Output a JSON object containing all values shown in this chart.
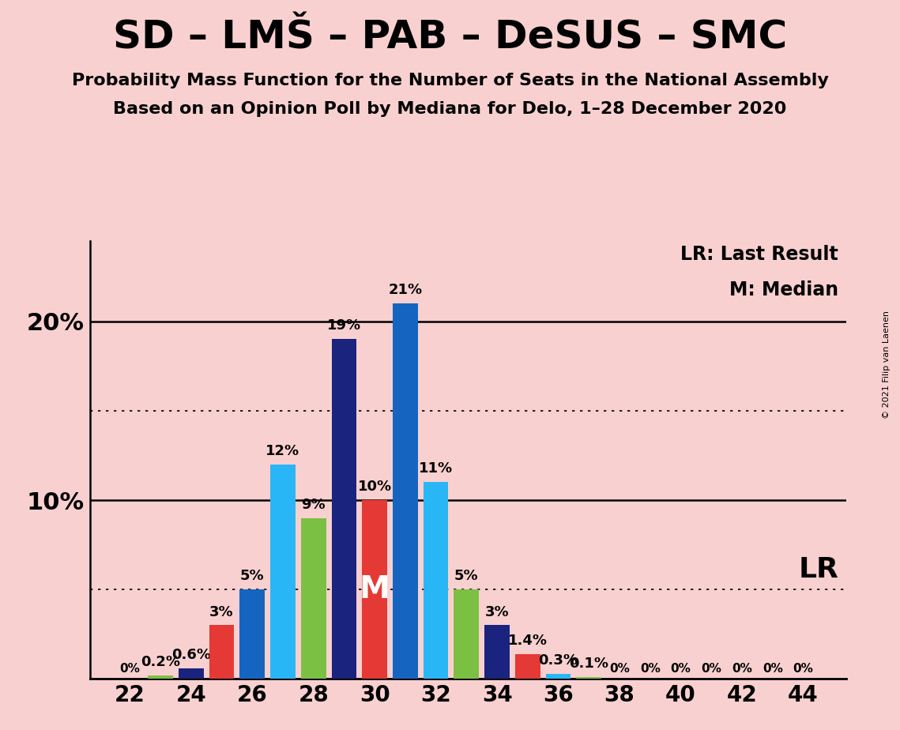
{
  "title": "SD – LMŠ – PAB – DeSUS – SMC",
  "subtitle1": "Probability Mass Function for the Number of Seats in the National Assembly",
  "subtitle2": "Based on an Opinion Poll by Mediana for Delo, 1–28 December 2020",
  "legend_lr": "LR: Last Result",
  "legend_m": "M: Median",
  "lr_label": "LR",
  "copyright": "© 2021 Filip van Laenen",
  "background_color": "#f9d0d0",
  "bars": [
    {
      "x": 22,
      "pct": 0.0,
      "color": "#7bc043",
      "label": "0%"
    },
    {
      "x": 23,
      "pct": 0.2,
      "color": "#7bc043",
      "label": "0.2%"
    },
    {
      "x": 24,
      "pct": 0.6,
      "color": "#1a237e",
      "label": "0.6%"
    },
    {
      "x": 25,
      "pct": 3.0,
      "color": "#e53935",
      "label": "3%"
    },
    {
      "x": 26,
      "pct": 5.0,
      "color": "#1565c0",
      "label": "5%"
    },
    {
      "x": 27,
      "pct": 12.0,
      "color": "#29b6f6",
      "label": "12%"
    },
    {
      "x": 28,
      "pct": 9.0,
      "color": "#7bc043",
      "label": "9%"
    },
    {
      "x": 29,
      "pct": 19.0,
      "color": "#1a237e",
      "label": "19%"
    },
    {
      "x": 30,
      "pct": 10.0,
      "color": "#e53935",
      "label": "10%",
      "median": true
    },
    {
      "x": 31,
      "pct": 21.0,
      "color": "#1565c0",
      "label": "21%"
    },
    {
      "x": 32,
      "pct": 11.0,
      "color": "#29b6f6",
      "label": "11%"
    },
    {
      "x": 33,
      "pct": 5.0,
      "color": "#7bc043",
      "label": "5%"
    },
    {
      "x": 34,
      "pct": 3.0,
      "color": "#1a237e",
      "label": "3%"
    },
    {
      "x": 35,
      "pct": 1.4,
      "color": "#e53935",
      "label": "1.4%"
    },
    {
      "x": 36,
      "pct": 0.3,
      "color": "#29b6f6",
      "label": "0.3%"
    },
    {
      "x": 37,
      "pct": 0.1,
      "color": "#7bc043",
      "label": "0.1%"
    },
    {
      "x": 38,
      "pct": 0.0,
      "color": "#1a237e",
      "label": "0%"
    },
    {
      "x": 39,
      "pct": 0.0,
      "color": "#e53935",
      "label": "0%"
    },
    {
      "x": 40,
      "pct": 0.0,
      "color": "#29b6f6",
      "label": "0%"
    },
    {
      "x": 41,
      "pct": 0.0,
      "color": "#7bc043",
      "label": "0%"
    },
    {
      "x": 42,
      "pct": 0.0,
      "color": "#1a237e",
      "label": "0%"
    },
    {
      "x": 43,
      "pct": 0.0,
      "color": "#e53935",
      "label": "0%"
    },
    {
      "x": 44,
      "pct": 0.0,
      "color": "#29b6f6",
      "label": "0%"
    }
  ],
  "xlim": [
    20.7,
    45.4
  ],
  "ylim": [
    0,
    24.5
  ],
  "xticks": [
    22,
    24,
    26,
    28,
    30,
    32,
    34,
    36,
    38,
    40,
    42,
    44
  ],
  "solid_hlines": [
    10,
    20
  ],
  "dotted_hlines": [
    5,
    15
  ],
  "bar_width": 0.82,
  "title_fontsize": 36,
  "subtitle_fontsize": 16,
  "ytick_fontsize": 22,
  "xtick_fontsize": 20,
  "label_fontsize": 13,
  "zero_label_fontsize": 11,
  "legend_fontsize": 17,
  "lr_fontsize": 26
}
